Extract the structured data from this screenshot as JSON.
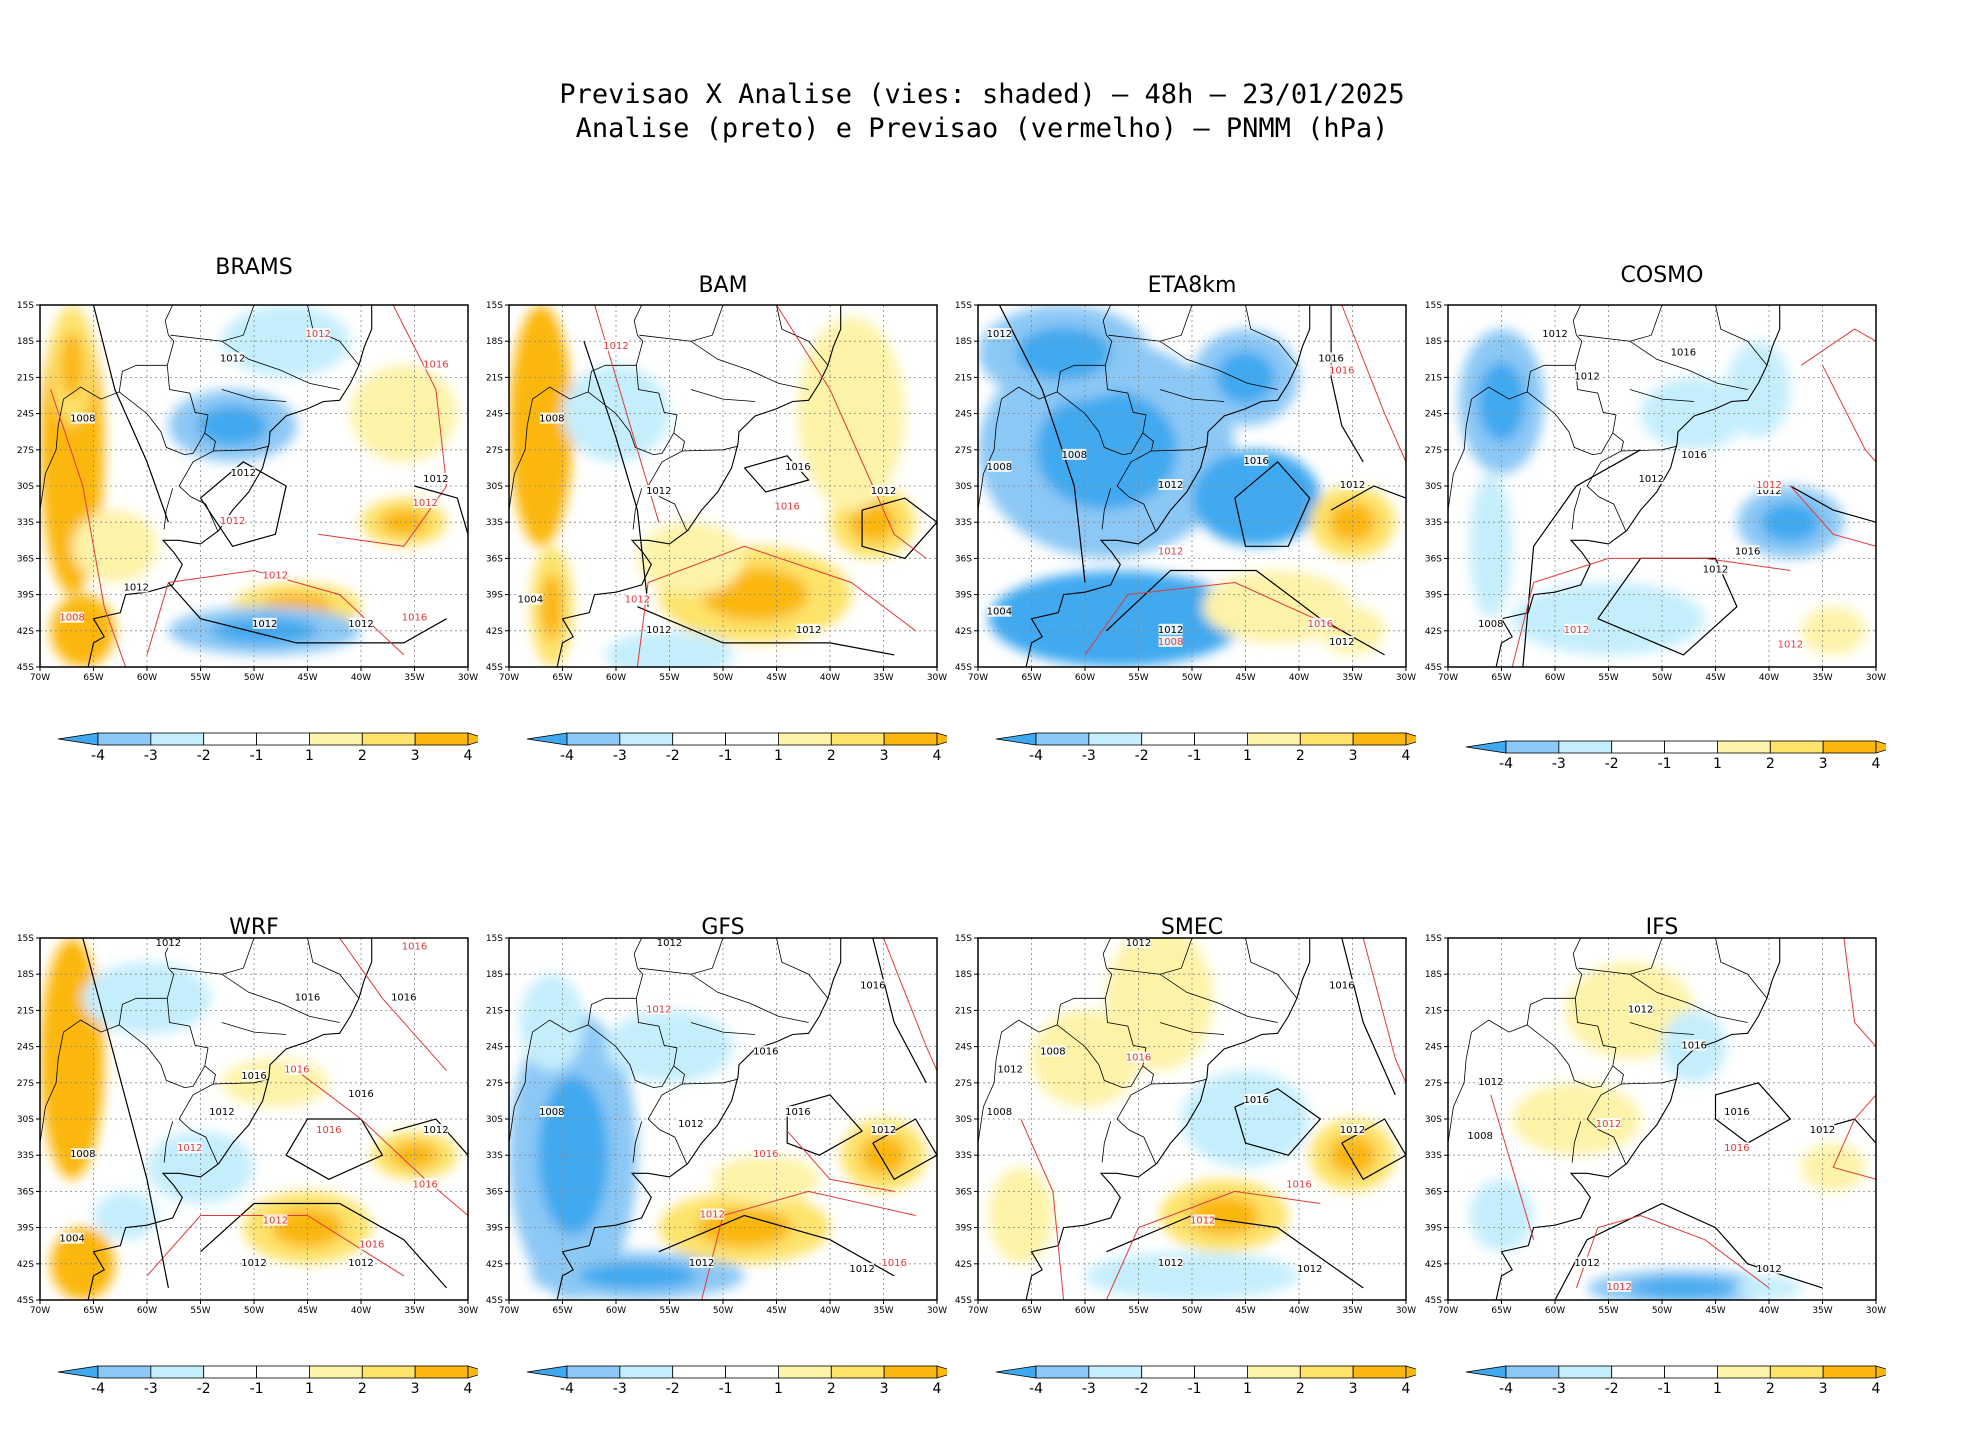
{
  "title": {
    "line1": "Previsao X Analise (vies: shaded) – 48h – 23/01/2025",
    "line2": "Analise (preto) e Previsao (vermelho) – PNMM (hPa)"
  },
  "colors": {
    "neg4": "#3fa9f0",
    "neg3": "#8cc8f5",
    "neg2": "#c5eefc",
    "neg1": "#ffffff",
    "pos1": "#ffffff",
    "pos2": "#fdf3a8",
    "pos3": "#fde36a",
    "pos4": "#fbb710",
    "analysis": "#000000",
    "forecast": "#e03a3a",
    "grid": "#888888"
  },
  "lat_labels": [
    "15S",
    "18S",
    "21S",
    "24S",
    "27S",
    "30S",
    "33S",
    "36S",
    "39S",
    "42S",
    "45S"
  ],
  "lon_labels": [
    "70W",
    "65W",
    "60W",
    "55W",
    "50W",
    "45W",
    "40W",
    "35W",
    "30W"
  ],
  "colorbar_labels": [
    "-4",
    "-3",
    "-2",
    "-1",
    "1",
    "2",
    "3",
    "4"
  ],
  "panels": [
    {
      "name": "BRAMS",
      "labels": [
        {
          "t": "1012",
          "c": "k",
          "lon": -52,
          "lat": -19.5
        },
        {
          "t": "1008",
          "c": "k",
          "lon": -66,
          "lat": -24.5
        },
        {
          "t": "1012",
          "c": "k",
          "lon": -51,
          "lat": -29
        },
        {
          "t": "1012",
          "c": "k",
          "lon": -61,
          "lat": -38.5
        },
        {
          "t": "1012",
          "c": "k",
          "lon": -49,
          "lat": -41.5
        },
        {
          "t": "1012",
          "c": "k",
          "lon": -40,
          "lat": -41.5
        },
        {
          "t": "1012",
          "c": "k",
          "lon": -33,
          "lat": -29.5
        },
        {
          "t": "1016",
          "c": "r",
          "lon": -33,
          "lat": -20
        },
        {
          "t": "1012",
          "c": "r",
          "lon": -44,
          "lat": -17.5
        },
        {
          "t": "1012",
          "c": "r",
          "lon": -34,
          "lat": -31.5
        },
        {
          "t": "1012",
          "c": "r",
          "lon": -52,
          "lat": -33
        },
        {
          "t": "1012",
          "c": "r",
          "lon": -48,
          "lat": -37.5
        },
        {
          "t": "1016",
          "c": "r",
          "lon": -35,
          "lat": -41
        },
        {
          "t": "1008",
          "c": "r",
          "lon": -67,
          "lat": -41
        }
      ]
    },
    {
      "name": "BAM",
      "labels": [
        {
          "t": "1012",
          "c": "k",
          "lon": -56,
          "lat": -30.5
        },
        {
          "t": "1008",
          "c": "k",
          "lon": -66,
          "lat": -24.5
        },
        {
          "t": "1016",
          "c": "k",
          "lon": -43,
          "lat": -28.5
        },
        {
          "t": "1012",
          "c": "k",
          "lon": -35,
          "lat": -30.5
        },
        {
          "t": "1012",
          "c": "k",
          "lon": -56,
          "lat": -42
        },
        {
          "t": "1012",
          "c": "k",
          "lon": -42,
          "lat": -42
        },
        {
          "t": "1004",
          "c": "k",
          "lon": -68,
          "lat": -39.5
        },
        {
          "t": "1012",
          "c": "r",
          "lon": -58,
          "lat": -39.5
        },
        {
          "t": "1012",
          "c": "r",
          "lon": -60,
          "lat": -18.5
        },
        {
          "t": "1016",
          "c": "r",
          "lon": -44,
          "lat": -31.8
        }
      ]
    },
    {
      "name": "ETA8km",
      "labels": [
        {
          "t": "1012",
          "c": "k",
          "lon": -68,
          "lat": -17.5
        },
        {
          "t": "1008",
          "c": "k",
          "lon": -68,
          "lat": -28.5
        },
        {
          "t": "1008",
          "c": "k",
          "lon": -61,
          "lat": -27.5
        },
        {
          "t": "1012",
          "c": "k",
          "lon": -52,
          "lat": -30
        },
        {
          "t": "1016",
          "c": "k",
          "lon": -44,
          "lat": -28
        },
        {
          "t": "1016",
          "c": "k",
          "lon": -37,
          "lat": -19.5
        },
        {
          "t": "1012",
          "c": "k",
          "lon": -35,
          "lat": -30
        },
        {
          "t": "1012",
          "c": "k",
          "lon": -52,
          "lat": -42
        },
        {
          "t": "1012",
          "c": "k",
          "lon": -36,
          "lat": -43
        },
        {
          "t": "1004",
          "c": "k",
          "lon": -68,
          "lat": -40.5
        },
        {
          "t": "1016",
          "c": "r",
          "lon": -36,
          "lat": -20.5
        },
        {
          "t": "1012",
          "c": "r",
          "lon": -52,
          "lat": -35.5
        },
        {
          "t": "1008",
          "c": "r",
          "lon": -52,
          "lat": -43
        },
        {
          "t": "1016",
          "c": "r",
          "lon": -38,
          "lat": -41.5
        }
      ]
    },
    {
      "name": "COSMO",
      "labels": [
        {
          "t": "1012",
          "c": "k",
          "lon": -60,
          "lat": -17.5
        },
        {
          "t": "1016",
          "c": "k",
          "lon": -48,
          "lat": -19
        },
        {
          "t": "1012",
          "c": "k",
          "lon": -57,
          "lat": -21
        },
        {
          "t": "1012",
          "c": "k",
          "lon": -51,
          "lat": -29.5
        },
        {
          "t": "1016",
          "c": "k",
          "lon": -47,
          "lat": -27.5
        },
        {
          "t": "1016",
          "c": "k",
          "lon": -42,
          "lat": -35.5
        },
        {
          "t": "1012",
          "c": "k",
          "lon": -45,
          "lat": -37
        },
        {
          "t": "1012",
          "c": "k",
          "lon": -40,
          "lat": -30.5
        },
        {
          "t": "1008",
          "c": "k",
          "lon": -66,
          "lat": -41.5
        },
        {
          "t": "1012",
          "c": "r",
          "lon": -40,
          "lat": -30
        },
        {
          "t": "1012",
          "c": "r",
          "lon": -58,
          "lat": -42
        },
        {
          "t": "1012",
          "c": "r",
          "lon": -38,
          "lat": -43.2
        }
      ]
    },
    {
      "name": "WRF",
      "labels": [
        {
          "t": "1012",
          "c": "k",
          "lon": -58,
          "lat": -15.5
        },
        {
          "t": "1016",
          "c": "k",
          "lon": -45,
          "lat": -20
        },
        {
          "t": "1016",
          "c": "k",
          "lon": -36,
          "lat": -20
        },
        {
          "t": "1016",
          "c": "k",
          "lon": -50,
          "lat": -26.5
        },
        {
          "t": "1016",
          "c": "k",
          "lon": -40,
          "lat": -28
        },
        {
          "t": "1012",
          "c": "k",
          "lon": -53,
          "lat": -29.5
        },
        {
          "t": "1012",
          "c": "k",
          "lon": -33,
          "lat": -31
        },
        {
          "t": "1008",
          "c": "k",
          "lon": -66,
          "lat": -33
        },
        {
          "t": "1004",
          "c": "k",
          "lon": -67,
          "lat": -40
        },
        {
          "t": "1012",
          "c": "k",
          "lon": -50,
          "lat": -42
        },
        {
          "t": "1012",
          "c": "k",
          "lon": -40,
          "lat": -42
        },
        {
          "t": "1016",
          "c": "r",
          "lon": -35,
          "lat": -15.8
        },
        {
          "t": "1016",
          "c": "r",
          "lon": -46,
          "lat": -26
        },
        {
          "t": "1016",
          "c": "r",
          "lon": -43,
          "lat": -31
        },
        {
          "t": "1016",
          "c": "r",
          "lon": -34,
          "lat": -35.5
        },
        {
          "t": "1012",
          "c": "r",
          "lon": -56,
          "lat": -32.5
        },
        {
          "t": "1012",
          "c": "r",
          "lon": -48,
          "lat": -38.5
        },
        {
          "t": "1016",
          "c": "r",
          "lon": -39,
          "lat": -40.5
        }
      ]
    },
    {
      "name": "GFS",
      "labels": [
        {
          "t": "1012",
          "c": "k",
          "lon": -55,
          "lat": -15.5
        },
        {
          "t": "1016",
          "c": "k",
          "lon": -36,
          "lat": -19
        },
        {
          "t": "1016",
          "c": "k",
          "lon": -46,
          "lat": -24.5
        },
        {
          "t": "1008",
          "c": "k",
          "lon": -66,
          "lat": -29.5
        },
        {
          "t": "1012",
          "c": "k",
          "lon": -53,
          "lat": -30.5
        },
        {
          "t": "1016",
          "c": "k",
          "lon": -43,
          "lat": -29.5
        },
        {
          "t": "1012",
          "c": "k",
          "lon": -35,
          "lat": -31
        },
        {
          "t": "1012",
          "c": "k",
          "lon": -52,
          "lat": -42
        },
        {
          "t": "1012",
          "c": "k",
          "lon": -37,
          "lat": -42.5
        },
        {
          "t": "1012",
          "c": "r",
          "lon": -56,
          "lat": -21
        },
        {
          "t": "1016",
          "c": "r",
          "lon": -46,
          "lat": -33
        },
        {
          "t": "1012",
          "c": "r",
          "lon": -51,
          "lat": -38
        },
        {
          "t": "1016",
          "c": "r",
          "lon": -34,
          "lat": -42
        }
      ]
    },
    {
      "name": "SMEC",
      "labels": [
        {
          "t": "1012",
          "c": "k",
          "lon": -55,
          "lat": -15.5
        },
        {
          "t": "1016",
          "c": "k",
          "lon": -36,
          "lat": -19
        },
        {
          "t": "1008",
          "c": "k",
          "lon": -63,
          "lat": -24.5
        },
        {
          "t": "1012",
          "c": "k",
          "lon": -67,
          "lat": -26
        },
        {
          "t": "1008",
          "c": "k",
          "lon": -68,
          "lat": -29.5
        },
        {
          "t": "1016",
          "c": "k",
          "lon": -44,
          "lat": -28.5
        },
        {
          "t": "1012",
          "c": "k",
          "lon": -35,
          "lat": -31
        },
        {
          "t": "1012",
          "c": "k",
          "lon": -52,
          "lat": -42
        },
        {
          "t": "1012",
          "c": "k",
          "lon": -39,
          "lat": -42.5
        },
        {
          "t": "1016",
          "c": "r",
          "lon": -55,
          "lat": -25
        },
        {
          "t": "1016",
          "c": "r",
          "lon": -40,
          "lat": -35.5
        },
        {
          "t": "1012",
          "c": "r",
          "lon": -49,
          "lat": -38.5
        }
      ]
    },
    {
      "name": "IFS",
      "labels": [
        {
          "t": "1012",
          "c": "k",
          "lon": -52,
          "lat": -21
        },
        {
          "t": "1016",
          "c": "k",
          "lon": -47,
          "lat": -24
        },
        {
          "t": "1012",
          "c": "k",
          "lon": -66,
          "lat": -27
        },
        {
          "t": "1008",
          "c": "k",
          "lon": -67,
          "lat": -31.5
        },
        {
          "t": "1016",
          "c": "k",
          "lon": -43,
          "lat": -29.5
        },
        {
          "t": "1012",
          "c": "k",
          "lon": -35,
          "lat": -31
        },
        {
          "t": "1012",
          "c": "k",
          "lon": -57,
          "lat": -42
        },
        {
          "t": "1012",
          "c": "k",
          "lon": -40,
          "lat": -42.5
        },
        {
          "t": "1012",
          "c": "r",
          "lon": -55,
          "lat": -30.5
        },
        {
          "t": "1016",
          "c": "r",
          "lon": -43,
          "lat": -32.5
        },
        {
          "t": "1012",
          "c": "r",
          "lon": -54,
          "lat": -44
        }
      ]
    }
  ]
}
